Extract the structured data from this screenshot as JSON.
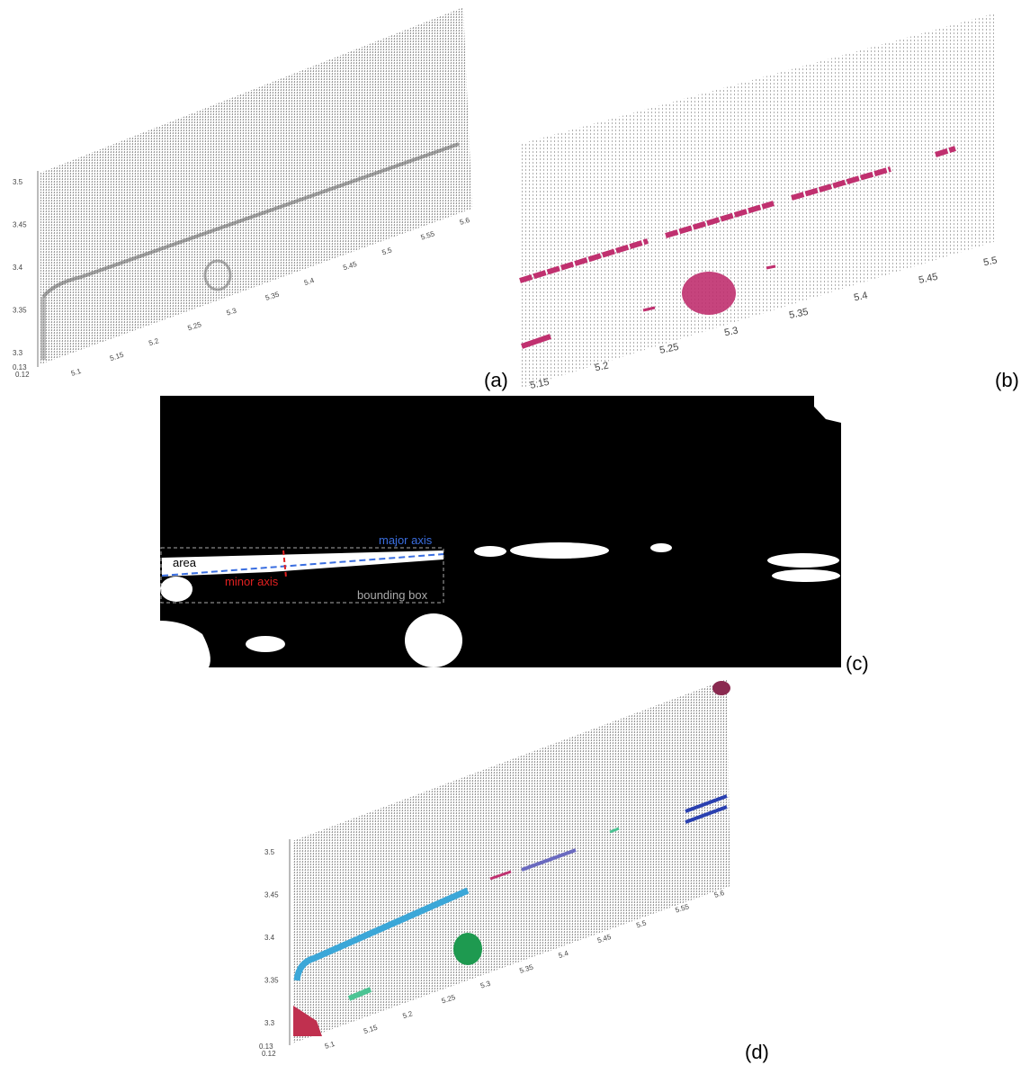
{
  "panels": [
    {
      "label": "(a)",
      "z_ticks": [
        "3.5",
        "3.45",
        "3.4",
        "3.35",
        "3.3"
      ],
      "depth_ticks": [
        "0.13",
        "0.12"
      ],
      "x_ticks": [
        "5.1",
        "5.15",
        "5.2",
        "5.25",
        "5.3",
        "5.35",
        "5.4",
        "5.45",
        "5.5",
        "5.55",
        "5.6"
      ]
    },
    {
      "label": "(b)",
      "x_ticks": [
        "5.15",
        "5.2",
        "5.25",
        "5.3",
        "5.35",
        "5.4",
        "5.45",
        "5.5"
      ]
    },
    {
      "label": "(c)",
      "annotations": {
        "area": "area",
        "major_axis": "major axis",
        "minor_axis": "minor axis",
        "bounding_box": "bounding box"
      }
    },
    {
      "label": "(d)",
      "z_ticks": [
        "3.5",
        "3.45",
        "3.4",
        "3.35",
        "3.3"
      ],
      "depth_ticks": [
        "0.13",
        "0.12"
      ],
      "x_ticks": [
        "5.1",
        "5.15",
        "5.2",
        "5.25",
        "5.3",
        "5.35",
        "5.4",
        "5.45",
        "5.5",
        "5.55",
        "5.6"
      ]
    }
  ]
}
